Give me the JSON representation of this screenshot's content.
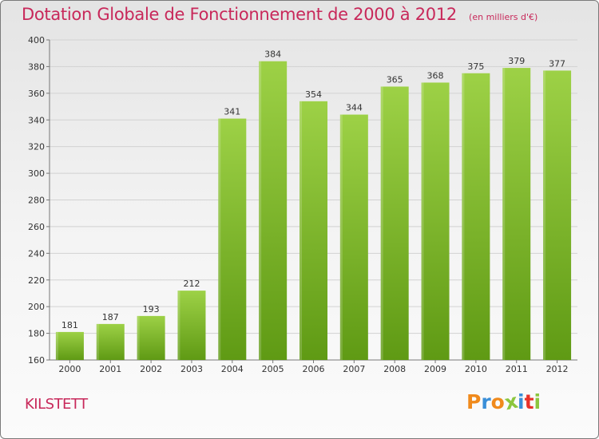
{
  "header": {
    "title": "Dotation Globale de Fonctionnement de 2000 à 2012",
    "subtitle": "(en milliers d'€)"
  },
  "footer": {
    "commune": "KILSTETT",
    "logo_text": "Proxiti"
  },
  "colors": {
    "title": "#c8285a",
    "bar_top": "#9dd146",
    "bar_bottom": "#5f9a14",
    "logo_letters": [
      "#f08a1c",
      "#3a8fd8",
      "#f08a1c",
      "#8cc63e",
      "#3a8fd8",
      "#e8322a",
      "#8cc63e"
    ]
  },
  "chart_data": {
    "type": "bar",
    "title": "Dotation Globale de Fonctionnement de 2000 à 2012",
    "subtitle": "(en milliers d'€)",
    "categories": [
      "2000",
      "2001",
      "2002",
      "2003",
      "2004",
      "2005",
      "2006",
      "2007",
      "2008",
      "2009",
      "2010",
      "2011",
      "2012"
    ],
    "values": [
      181,
      187,
      193,
      212,
      341,
      384,
      354,
      344,
      365,
      368,
      375,
      379,
      377
    ],
    "ylim": [
      160,
      400
    ],
    "yticks": [
      160,
      180,
      200,
      220,
      240,
      260,
      280,
      300,
      320,
      340,
      360,
      380,
      400
    ],
    "grid": true,
    "data_labels": true
  }
}
